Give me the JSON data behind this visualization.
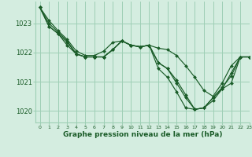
{
  "title": "Graphe pression niveau de la mer (hPa)",
  "bg_color": "#d4ede0",
  "grid_color": "#9ecfb5",
  "line_color": "#1a5c28",
  "xlim": [
    -0.5,
    23
  ],
  "ylim": [
    1019.6,
    1023.75
  ],
  "yticks": [
    1020,
    1021,
    1022,
    1023
  ],
  "xticks": [
    0,
    1,
    2,
    3,
    4,
    5,
    6,
    7,
    8,
    9,
    10,
    11,
    12,
    13,
    14,
    15,
    16,
    17,
    18,
    19,
    20,
    21,
    22,
    23
  ],
  "lines": [
    [
      1023.55,
      1023.1,
      1022.75,
      1022.45,
      1022.05,
      1021.9,
      1021.9,
      1022.05,
      1022.35,
      1022.4,
      1022.25,
      1022.2,
      1022.25,
      1021.45,
      1021.15,
      1020.65,
      1020.1,
      1020.05,
      1020.1,
      1020.45,
      1020.75,
      1020.95,
      1021.85,
      1021.85
    ],
    [
      1023.55,
      1023.0,
      1022.7,
      1022.4,
      1021.95,
      1021.85,
      1021.85,
      1021.85,
      1022.1,
      1022.4,
      1022.25,
      1022.2,
      1022.25,
      1021.65,
      1021.45,
      1021.05,
      1020.55,
      1020.05,
      1020.1,
      1020.45,
      1020.8,
      1021.2,
      1021.85,
      1021.85
    ],
    [
      1023.55,
      1022.9,
      1022.65,
      1022.25,
      1021.95,
      1021.85,
      1021.85,
      1021.85,
      1022.1,
      1022.4,
      1022.25,
      1022.2,
      1022.25,
      1021.65,
      1021.45,
      1020.95,
      1020.45,
      1020.05,
      1020.1,
      1020.35,
      1020.75,
      1021.3,
      1021.85,
      1021.85
    ],
    [
      1023.55,
      1022.9,
      1022.65,
      1022.35,
      1021.95,
      1021.85,
      1021.85,
      1021.85,
      1022.1,
      1022.4,
      1022.25,
      1022.2,
      1022.25,
      1022.15,
      1022.1,
      1021.9,
      1021.55,
      1021.15,
      1020.7,
      1020.5,
      1020.95,
      1021.55,
      1021.85,
      1021.85
    ]
  ]
}
